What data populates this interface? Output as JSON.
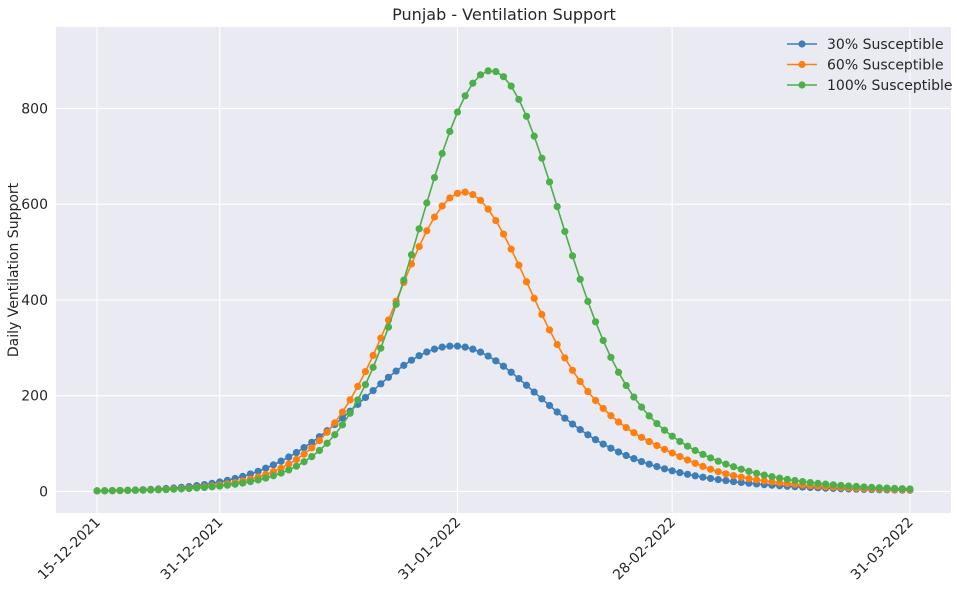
{
  "chart_data": {
    "type": "line",
    "title": "Punjab - Ventilation Support",
    "xlabel": "",
    "ylabel": "Daily Ventilation Support",
    "x_start": "15-12-2021",
    "x_end": "31-03-2022",
    "x_ticks": [
      "15-12-2021",
      "31-12-2021",
      "31-01-2022",
      "28-02-2022",
      "31-03-2022"
    ],
    "y_ticks": [
      0,
      200,
      400,
      600,
      800
    ],
    "ylim": [
      -45,
      970
    ],
    "grid": true,
    "legend_position": "top-right",
    "marker": "circle",
    "series": [
      {
        "name": "30% Susceptible",
        "color": "#3b7eb8",
        "values": [
          1.2,
          1.5,
          1.8,
          2.1,
          2.5,
          3,
          3.6,
          4.3,
          5.1,
          6.1,
          7.2,
          8.6,
          10.2,
          12.1,
          14.3,
          16.9,
          19.8,
          23.2,
          27.1,
          31.5,
          36.5,
          42.1,
          48.5,
          55.5,
          63.3,
          71.9,
          81.3,
          91.6,
          102.6,
          114.3,
          126.8,
          139.9,
          153.5,
          167.6,
          181.9,
          196.3,
          210.7,
          224.8,
          238.4,
          251.3,
          263.3,
          274.1,
          283.5,
          291.3,
          297.3,
          301.4,
          303.5,
          303.5,
          301.4,
          297.2,
          291,
          282.8,
          272.8,
          261.5,
          249,
          235.7,
          221.8,
          207.6,
          193.5,
          179.5,
          166,
          153,
          140.7,
          129.1,
          118.3,
          108.2,
          98.9,
          90.3,
          82.4,
          75.1,
          68.5,
          62.4,
          56.9,
          51.9,
          47.3,
          43.1,
          39.3,
          35.8,
          32.7,
          29.8,
          27.2,
          24.8,
          22.6,
          20.6,
          18.8,
          17.2,
          15.7,
          14.3,
          13.1,
          11.9,
          10.9,
          9.9,
          9.1,
          8.3,
          7.6,
          6.9,
          6.3,
          5.7,
          5.2,
          4.8,
          4.4,
          4,
          3.6,
          3.3,
          3,
          2.8,
          2.5
        ]
      },
      {
        "name": "60% Susceptible",
        "color": "#ff7f0e",
        "values": [
          1.2,
          1.4,
          1.6,
          1.8,
          2.1,
          2.4,
          2.8,
          3.3,
          3.8,
          4.4,
          5.2,
          6.1,
          7.1,
          8.3,
          9.8,
          11.5,
          13.5,
          15.9,
          18.6,
          21.9,
          25.7,
          30.2,
          35.4,
          41.5,
          48.6,
          57,
          66.7,
          78,
          91.1,
          106.2,
          123.6,
          143.4,
          165.9,
          191.2,
          219.4,
          250.4,
          284.1,
          320.2,
          358.1,
          397.2,
          436.5,
          475,
          511.4,
          544.5,
          573.1,
          596.2,
          612.9,
          622.7,
          625.1,
          620.1,
          608,
          589.6,
          565.8,
          537.6,
          506.1,
          472.5,
          437.9,
          403.3,
          369.6,
          337.3,
          306.9,
          278.8,
          253,
          229.7,
          208.7,
          190,
          173.3,
          158.4,
          145.2,
          133.4,
          122.7,
          113,
          104.1,
          95.8,
          87.9,
          80.3,
          72.9,
          65.7,
          58.8,
          52.3,
          46.4,
          41.3,
          36.8,
          33,
          29.7,
          26.8,
          24.3,
          22,
          19.9,
          18.1,
          16.4,
          14.9,
          13.5,
          12.3,
          11.1,
          10.1,
          9.2,
          8.3,
          7.6,
          6.9,
          6.2,
          5.7,
          5.1,
          4.7,
          4.2,
          3.8,
          3.5
        ]
      },
      {
        "name": "100% Susceptible",
        "color": "#4daf4a",
        "values": [
          1.2,
          1.3,
          1.5,
          1.7,
          2,
          2.3,
          2.6,
          3,
          3.5,
          4,
          4.6,
          5.4,
          6.2,
          7.2,
          8.3,
          9.6,
          11.2,
          13,
          15.1,
          17.6,
          20.6,
          24,
          28,
          32.8,
          38.4,
          45,
          52.8,
          62,
          72.8,
          85.6,
          100.7,
          118.4,
          139.1,
          163.3,
          191.2,
          223.1,
          259.1,
          299.2,
          343.2,
          390.8,
          441.4,
          494.3,
          548.5,
          602.7,
          655.6,
          705.8,
          751.8,
          792.4,
          826.3,
          852.5,
          870.1,
          878.3,
          876.9,
          866.2,
          846.6,
          818.7,
          783.5,
          742.1,
          696,
          646.4,
          594.9,
          543,
          492,
          443.1,
          397,
          354.3,
          315.3,
          280.1,
          248.9,
          221.3,
          197.1,
          176.1,
          157.8,
          141.8,
          127.8,
          115.4,
          104.4,
          94.5,
          85.5,
          77.4,
          70,
          63.2,
          57.1,
          51.6,
          46.5,
          42,
          37.9,
          34.2,
          30.9,
          27.9,
          25.2,
          22.8,
          20.6,
          18.6,
          16.9,
          15.3,
          13.9,
          12.6,
          11.4,
          10.4,
          9.4,
          8.5,
          7.7,
          7,
          6.3,
          5.7,
          5.2
        ]
      }
    ]
  }
}
